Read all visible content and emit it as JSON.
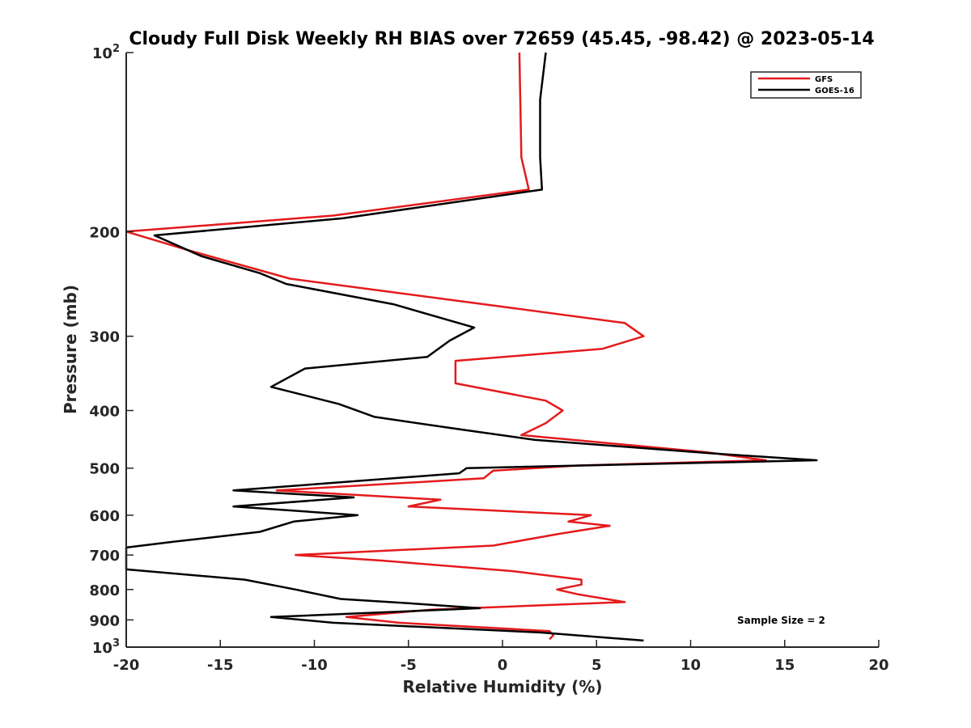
{
  "chart_data": {
    "type": "line",
    "title": "Cloudy Full Disk Weekly RH BIAS over 72659 (45.45, -98.42) @ 2023-05-14",
    "xlabel": "Relative Humidity (%)",
    "ylabel": "Pressure (mb)",
    "xlim": [
      -20,
      20
    ],
    "ylim": [
      100,
      1000
    ],
    "y_scale": "log",
    "y_reversed": true,
    "grid": false,
    "legend_position": "top-right",
    "x_ticks": [
      -20,
      -15,
      -10,
      -5,
      0,
      5,
      10,
      15,
      20
    ],
    "y_ticks": [
      {
        "value": 100,
        "base": "10",
        "exp": "2"
      },
      {
        "value": 200,
        "label": "200"
      },
      {
        "value": 300,
        "label": "300"
      },
      {
        "value": 400,
        "label": "400"
      },
      {
        "value": 500,
        "label": "500"
      },
      {
        "value": 600,
        "label": "600"
      },
      {
        "value": 700,
        "label": "700"
      },
      {
        "value": 800,
        "label": "800"
      },
      {
        "value": 900,
        "label": "900"
      },
      {
        "value": 1000,
        "base": "10",
        "exp": "3"
      }
    ],
    "series": [
      {
        "name": "GFS",
        "color": "#e41a1c",
        "points": [
          [
            0.9,
            100
          ],
          [
            1.0,
            150
          ],
          [
            1.4,
            170
          ],
          [
            -9.0,
            188
          ],
          [
            -20.0,
            200
          ],
          [
            -16.7,
            215
          ],
          [
            -11.3,
            240
          ],
          [
            -1.0,
            265
          ],
          [
            6.5,
            285
          ],
          [
            7.5,
            300
          ],
          [
            5.3,
            315
          ],
          [
            -2.5,
            330
          ],
          [
            -2.5,
            360
          ],
          [
            2.3,
            385
          ],
          [
            3.2,
            400
          ],
          [
            2.3,
            420
          ],
          [
            1.0,
            440
          ],
          [
            10.8,
            470
          ],
          [
            14.0,
            485
          ],
          [
            4.0,
            495
          ],
          [
            -0.5,
            505
          ],
          [
            -1.0,
            520
          ],
          [
            -12.0,
            545
          ],
          [
            -3.3,
            565
          ],
          [
            -5.0,
            580
          ],
          [
            4.7,
            600
          ],
          [
            3.5,
            615
          ],
          [
            5.7,
            625
          ],
          [
            3.0,
            645
          ],
          [
            -0.5,
            675
          ],
          [
            -11.0,
            700
          ],
          [
            -6.5,
            715
          ],
          [
            0.5,
            745
          ],
          [
            4.2,
            770
          ],
          [
            4.2,
            785
          ],
          [
            2.9,
            800
          ],
          [
            4.0,
            815
          ],
          [
            6.5,
            840
          ],
          [
            -3.8,
            865
          ],
          [
            -8.3,
            890
          ],
          [
            -5.5,
            910
          ],
          [
            2.5,
            940
          ],
          [
            2.7,
            955
          ],
          [
            2.5,
            970
          ]
        ]
      },
      {
        "name": "GOES-16",
        "color": "#000000",
        "points": [
          [
            2.3,
            100
          ],
          [
            2.0,
            120
          ],
          [
            2.0,
            150
          ],
          [
            2.1,
            170
          ],
          [
            -8.5,
            190
          ],
          [
            -18.5,
            203
          ],
          [
            -16.0,
            220
          ],
          [
            -12.9,
            235
          ],
          [
            -11.5,
            245
          ],
          [
            -5.8,
            265
          ],
          [
            -1.5,
            290
          ],
          [
            -2.8,
            305
          ],
          [
            -4.0,
            325
          ],
          [
            -10.5,
            340
          ],
          [
            -12.3,
            365
          ],
          [
            -8.7,
            390
          ],
          [
            -6.8,
            410
          ],
          [
            -2.3,
            430
          ],
          [
            1.7,
            448
          ],
          [
            11.0,
            472
          ],
          [
            16.7,
            485
          ],
          [
            -1.9,
            500
          ],
          [
            -2.3,
            510
          ],
          [
            -14.3,
            545
          ],
          [
            -7.9,
            560
          ],
          [
            -14.3,
            580
          ],
          [
            -7.7,
            600
          ],
          [
            -11.1,
            615
          ],
          [
            -12.9,
            640
          ],
          [
            -17.5,
            665
          ],
          [
            -20.0,
            680
          ],
          [
            -20.0,
            740
          ],
          [
            -13.7,
            770
          ],
          [
            -11.0,
            800
          ],
          [
            -8.6,
            830
          ],
          [
            -4.7,
            845
          ],
          [
            -1.2,
            860
          ],
          [
            -12.3,
            890
          ],
          [
            -9.0,
            910
          ],
          [
            2.0,
            945
          ],
          [
            7.5,
            975
          ]
        ]
      }
    ],
    "annotation": "Sample Size = 2"
  }
}
